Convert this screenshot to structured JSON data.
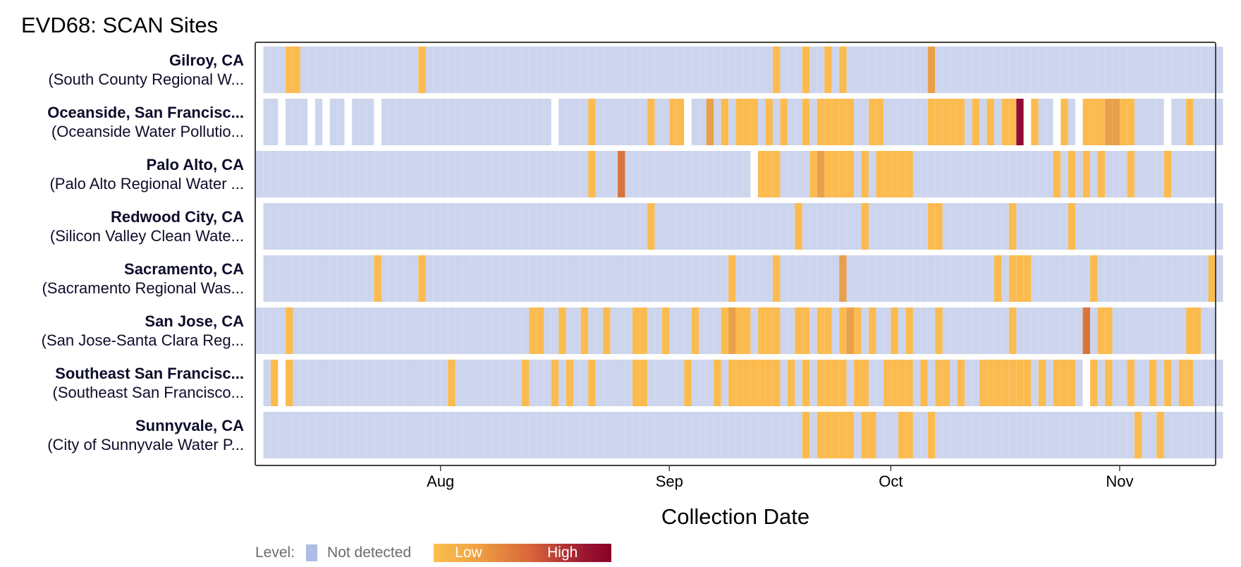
{
  "title": "EVD68: SCAN Sites",
  "colors": {
    "not_detected": "#ccd5ed",
    "low": "#fbbb4f",
    "mid": "#e9a04a",
    "medium": "#d8743d",
    "high": "#8f0a32",
    "frame": "#444444"
  },
  "legend": {
    "title": "Level:",
    "not_detected_label": "Not detected",
    "low_label": "Low",
    "high_label": "High"
  },
  "chart_data": {
    "type": "heatmap",
    "xlabel": "Collection Date",
    "x_start": "2024-07-08",
    "x_end": "2024-11-14",
    "xlim": [
      "2024-07-07",
      "2024-11-14"
    ],
    "ticks": [
      {
        "date": "2024-08-01",
        "label": "Aug"
      },
      {
        "date": "2024-09-01",
        "label": "Sep"
      },
      {
        "date": "2024-10-01",
        "label": "Oct"
      },
      {
        "date": "2024-11-01",
        "label": "Nov"
      }
    ],
    "sites": [
      {
        "name": "Gilroy, CA",
        "sub": "(South County Regional W...",
        "start": "2024-07-08",
        "end": "2024-11-14",
        "gaps": [],
        "detections": [
          {
            "from": "2024-07-11",
            "to": "2024-07-11",
            "level": "low"
          },
          {
            "from": "2024-07-12",
            "to": "2024-07-12",
            "level": "low"
          },
          {
            "from": "2024-07-29",
            "to": "2024-07-29",
            "level": "low"
          },
          {
            "from": "2024-09-15",
            "to": "2024-09-15",
            "level": "low"
          },
          {
            "from": "2024-09-19",
            "to": "2024-09-19",
            "level": "low"
          },
          {
            "from": "2024-09-22",
            "to": "2024-09-22",
            "level": "low"
          },
          {
            "from": "2024-09-24",
            "to": "2024-09-24",
            "level": "low"
          },
          {
            "from": "2024-10-06",
            "to": "2024-10-06",
            "level": "mid"
          }
        ]
      },
      {
        "name": "Oceanside, San Francisc...",
        "sub": "(Oceanside Water Pollutio...",
        "start": "2024-07-08",
        "end": "2024-11-14",
        "gaps": [
          "2024-07-10",
          "2024-07-14",
          "2024-07-16",
          "2024-07-19",
          "2024-07-23",
          "2024-08-16",
          "2024-09-03",
          "2024-10-19",
          "2024-10-23",
          "2024-10-26",
          "2024-11-07"
        ],
        "detections": [
          {
            "from": "2024-08-21",
            "to": "2024-08-21",
            "level": "low"
          },
          {
            "from": "2024-08-29",
            "to": "2024-08-29",
            "level": "low"
          },
          {
            "from": "2024-09-01",
            "to": "2024-09-02",
            "level": "low"
          },
          {
            "from": "2024-09-06",
            "to": "2024-09-06",
            "level": "mid"
          },
          {
            "from": "2024-09-08",
            "to": "2024-09-08",
            "level": "low"
          },
          {
            "from": "2024-09-10",
            "to": "2024-09-12",
            "level": "low"
          },
          {
            "from": "2024-09-14",
            "to": "2024-09-14",
            "level": "low"
          },
          {
            "from": "2024-09-16",
            "to": "2024-09-16",
            "level": "low"
          },
          {
            "from": "2024-09-19",
            "to": "2024-09-19",
            "level": "low"
          },
          {
            "from": "2024-09-21",
            "to": "2024-09-25",
            "level": "low"
          },
          {
            "from": "2024-09-28",
            "to": "2024-09-29",
            "level": "low"
          },
          {
            "from": "2024-10-06",
            "to": "2024-10-10",
            "level": "low"
          },
          {
            "from": "2024-10-12",
            "to": "2024-10-12",
            "level": "low"
          },
          {
            "from": "2024-10-14",
            "to": "2024-10-14",
            "level": "low"
          },
          {
            "from": "2024-10-16",
            "to": "2024-10-17",
            "level": "low"
          },
          {
            "from": "2024-10-18",
            "to": "2024-10-18",
            "level": "high"
          },
          {
            "from": "2024-10-19",
            "to": "2024-10-20",
            "level": "low"
          },
          {
            "from": "2024-10-24",
            "to": "2024-10-24",
            "level": "low"
          },
          {
            "from": "2024-10-27",
            "to": "2024-11-02",
            "level": "low"
          },
          {
            "from": "2024-10-30",
            "to": "2024-10-31",
            "level": "mid"
          },
          {
            "from": "2024-11-10",
            "to": "2024-11-10",
            "level": "low"
          }
        ]
      },
      {
        "name": "Palo Alto, CA",
        "sub": "(Palo Alto Regional Water ...",
        "start": "2024-07-07",
        "end": "2024-11-13",
        "gaps": [
          "2024-09-12"
        ],
        "detections": [
          {
            "from": "2024-08-21",
            "to": "2024-08-21",
            "level": "low"
          },
          {
            "from": "2024-08-25",
            "to": "2024-08-25",
            "level": "medium"
          },
          {
            "from": "2024-09-13",
            "to": "2024-09-15",
            "level": "low"
          },
          {
            "from": "2024-09-20",
            "to": "2024-09-25",
            "level": "low"
          },
          {
            "from": "2024-09-21",
            "to": "2024-09-21",
            "level": "mid"
          },
          {
            "from": "2024-09-27",
            "to": "2024-09-27",
            "level": "low"
          },
          {
            "from": "2024-09-29",
            "to": "2024-10-03",
            "level": "low"
          },
          {
            "from": "2024-10-23",
            "to": "2024-10-23",
            "level": "low"
          },
          {
            "from": "2024-10-25",
            "to": "2024-10-25",
            "level": "low"
          },
          {
            "from": "2024-10-27",
            "to": "2024-10-27",
            "level": "low"
          },
          {
            "from": "2024-10-29",
            "to": "2024-10-29",
            "level": "low"
          },
          {
            "from": "2024-11-02",
            "to": "2024-11-02",
            "level": "low"
          },
          {
            "from": "2024-11-07",
            "to": "2024-11-07",
            "level": "low"
          }
        ]
      },
      {
        "name": "Redwood City, CA",
        "sub": "(Silicon Valley Clean Wate...",
        "start": "2024-07-08",
        "end": "2024-11-14",
        "gaps": [],
        "detections": [
          {
            "from": "2024-08-29",
            "to": "2024-08-29",
            "level": "low"
          },
          {
            "from": "2024-09-18",
            "to": "2024-09-18",
            "level": "low"
          },
          {
            "from": "2024-09-27",
            "to": "2024-09-27",
            "level": "low"
          },
          {
            "from": "2024-10-06",
            "to": "2024-10-07",
            "level": "low"
          },
          {
            "from": "2024-10-17",
            "to": "2024-10-17",
            "level": "low"
          },
          {
            "from": "2024-10-25",
            "to": "2024-10-25",
            "level": "low"
          }
        ]
      },
      {
        "name": "Sacramento, CA",
        "sub": "(Sacramento Regional Was...",
        "start": "2024-07-08",
        "end": "2024-11-14",
        "gaps": [],
        "detections": [
          {
            "from": "2024-07-23",
            "to": "2024-07-23",
            "level": "low"
          },
          {
            "from": "2024-07-29",
            "to": "2024-07-29",
            "level": "low"
          },
          {
            "from": "2024-09-09",
            "to": "2024-09-09",
            "level": "low"
          },
          {
            "from": "2024-09-15",
            "to": "2024-09-15",
            "level": "low"
          },
          {
            "from": "2024-09-24",
            "to": "2024-09-24",
            "level": "mid"
          },
          {
            "from": "2024-10-15",
            "to": "2024-10-15",
            "level": "low"
          },
          {
            "from": "2024-10-17",
            "to": "2024-10-19",
            "level": "low"
          },
          {
            "from": "2024-10-28",
            "to": "2024-10-28",
            "level": "low"
          },
          {
            "from": "2024-11-13",
            "to": "2024-11-13",
            "level": "low"
          }
        ]
      },
      {
        "name": "San Jose, CA",
        "sub": "(San Jose-Santa Clara Reg...",
        "start": "2024-07-07",
        "end": "2024-11-13",
        "gaps": [],
        "detections": [
          {
            "from": "2024-07-11",
            "to": "2024-07-11",
            "level": "low"
          },
          {
            "from": "2024-08-13",
            "to": "2024-08-14",
            "level": "low"
          },
          {
            "from": "2024-08-17",
            "to": "2024-08-17",
            "level": "low"
          },
          {
            "from": "2024-08-20",
            "to": "2024-08-20",
            "level": "low"
          },
          {
            "from": "2024-08-23",
            "to": "2024-08-23",
            "level": "low"
          },
          {
            "from": "2024-08-27",
            "to": "2024-08-28",
            "level": "low"
          },
          {
            "from": "2024-08-31",
            "to": "2024-08-31",
            "level": "low"
          },
          {
            "from": "2024-09-04",
            "to": "2024-09-04",
            "level": "low"
          },
          {
            "from": "2024-09-08",
            "to": "2024-09-11",
            "level": "low"
          },
          {
            "from": "2024-09-09",
            "to": "2024-09-09",
            "level": "mid"
          },
          {
            "from": "2024-09-13",
            "to": "2024-09-15",
            "level": "low"
          },
          {
            "from": "2024-09-18",
            "to": "2024-09-19",
            "level": "low"
          },
          {
            "from": "2024-09-21",
            "to": "2024-09-22",
            "level": "low"
          },
          {
            "from": "2024-09-24",
            "to": "2024-09-26",
            "level": "low"
          },
          {
            "from": "2024-09-25",
            "to": "2024-09-25",
            "level": "mid"
          },
          {
            "from": "2024-09-28",
            "to": "2024-09-28",
            "level": "low"
          },
          {
            "from": "2024-10-01",
            "to": "2024-10-01",
            "level": "low"
          },
          {
            "from": "2024-10-03",
            "to": "2024-10-03",
            "level": "low"
          },
          {
            "from": "2024-10-07",
            "to": "2024-10-07",
            "level": "low"
          },
          {
            "from": "2024-10-17",
            "to": "2024-10-17",
            "level": "low"
          },
          {
            "from": "2024-10-27",
            "to": "2024-10-27",
            "level": "medium"
          },
          {
            "from": "2024-10-29",
            "to": "2024-10-30",
            "level": "low"
          },
          {
            "from": "2024-11-10",
            "to": "2024-11-11",
            "level": "low"
          }
        ]
      },
      {
        "name": "Southeast San Francisc...",
        "sub": "(Southeast San Francisco...",
        "start": "2024-07-08",
        "end": "2024-11-14",
        "gaps": [
          "2024-07-10",
          "2024-10-27"
        ],
        "detections": [
          {
            "from": "2024-07-09",
            "to": "2024-07-09",
            "level": "low"
          },
          {
            "from": "2024-07-11",
            "to": "2024-07-11",
            "level": "low"
          },
          {
            "from": "2024-08-02",
            "to": "2024-08-02",
            "level": "low"
          },
          {
            "from": "2024-08-12",
            "to": "2024-08-12",
            "level": "low"
          },
          {
            "from": "2024-08-16",
            "to": "2024-08-16",
            "level": "low"
          },
          {
            "from": "2024-08-18",
            "to": "2024-08-18",
            "level": "low"
          },
          {
            "from": "2024-08-21",
            "to": "2024-08-21",
            "level": "low"
          },
          {
            "from": "2024-08-27",
            "to": "2024-08-28",
            "level": "low"
          },
          {
            "from": "2024-09-03",
            "to": "2024-09-03",
            "level": "low"
          },
          {
            "from": "2024-09-07",
            "to": "2024-09-07",
            "level": "low"
          },
          {
            "from": "2024-09-09",
            "to": "2024-09-15",
            "level": "low"
          },
          {
            "from": "2024-09-17",
            "to": "2024-09-17",
            "level": "low"
          },
          {
            "from": "2024-09-19",
            "to": "2024-09-19",
            "level": "low"
          },
          {
            "from": "2024-09-21",
            "to": "2024-09-24",
            "level": "low"
          },
          {
            "from": "2024-09-26",
            "to": "2024-09-27",
            "level": "low"
          },
          {
            "from": "2024-09-30",
            "to": "2024-10-03",
            "level": "low"
          },
          {
            "from": "2024-10-05",
            "to": "2024-10-05",
            "level": "low"
          },
          {
            "from": "2024-10-07",
            "to": "2024-10-08",
            "level": "low"
          },
          {
            "from": "2024-10-10",
            "to": "2024-10-10",
            "level": "low"
          },
          {
            "from": "2024-10-13",
            "to": "2024-10-19",
            "level": "low"
          },
          {
            "from": "2024-10-21",
            "to": "2024-10-21",
            "level": "low"
          },
          {
            "from": "2024-10-23",
            "to": "2024-10-25",
            "level": "low"
          },
          {
            "from": "2024-10-28",
            "to": "2024-10-28",
            "level": "low"
          },
          {
            "from": "2024-10-30",
            "to": "2024-10-30",
            "level": "low"
          },
          {
            "from": "2024-11-02",
            "to": "2024-11-02",
            "level": "low"
          },
          {
            "from": "2024-11-05",
            "to": "2024-11-05",
            "level": "low"
          },
          {
            "from": "2024-11-07",
            "to": "2024-11-07",
            "level": "low"
          },
          {
            "from": "2024-11-09",
            "to": "2024-11-10",
            "level": "low"
          }
        ]
      },
      {
        "name": "Sunnyvale, CA",
        "sub": "(City of Sunnyvale Water P...",
        "start": "2024-07-08",
        "end": "2024-11-14",
        "gaps": [],
        "detections": [
          {
            "from": "2024-09-19",
            "to": "2024-09-19",
            "level": "low"
          },
          {
            "from": "2024-09-21",
            "to": "2024-09-25",
            "level": "low"
          },
          {
            "from": "2024-09-27",
            "to": "2024-09-28",
            "level": "low"
          },
          {
            "from": "2024-10-02",
            "to": "2024-10-03",
            "level": "low"
          },
          {
            "from": "2024-10-06",
            "to": "2024-10-06",
            "level": "low"
          },
          {
            "from": "2024-11-03",
            "to": "2024-11-03",
            "level": "low"
          },
          {
            "from": "2024-11-06",
            "to": "2024-11-06",
            "level": "low"
          }
        ]
      }
    ]
  }
}
